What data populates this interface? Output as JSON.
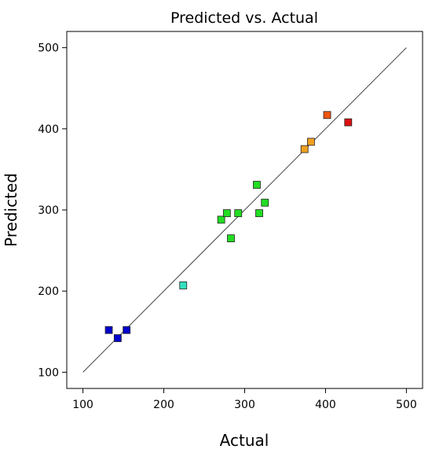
{
  "chart_data": {
    "type": "scatter",
    "title": "Predicted vs. Actual",
    "xlabel": "Actual",
    "ylabel": "Predicted",
    "xlim": [
      80,
      520
    ],
    "ylim": [
      80,
      520
    ],
    "xticks": [
      100,
      200,
      300,
      400,
      500
    ],
    "yticks": [
      100,
      200,
      300,
      400,
      500
    ],
    "reference_line": {
      "from": [
        100,
        100
      ],
      "to": [
        500,
        500
      ],
      "color": "#444444"
    },
    "grid": false,
    "legend": "none",
    "points": [
      {
        "x": 132,
        "y": 152,
        "color": "#0000cc"
      },
      {
        "x": 143,
        "y": 142,
        "color": "#0000cc"
      },
      {
        "x": 154,
        "y": 152,
        "color": "#0000cc"
      },
      {
        "x": 224,
        "y": 207,
        "color": "#33e0c0"
      },
      {
        "x": 271,
        "y": 288,
        "color": "#22dd22"
      },
      {
        "x": 278,
        "y": 296,
        "color": "#22dd22"
      },
      {
        "x": 283,
        "y": 265,
        "color": "#22dd22"
      },
      {
        "x": 292,
        "y": 296,
        "color": "#22dd22"
      },
      {
        "x": 315,
        "y": 331,
        "color": "#22dd22"
      },
      {
        "x": 318,
        "y": 296,
        "color": "#22dd22"
      },
      {
        "x": 325,
        "y": 309,
        "color": "#22dd22"
      },
      {
        "x": 374,
        "y": 375,
        "color": "#f0a020"
      },
      {
        "x": 382,
        "y": 384,
        "color": "#f0a020"
      },
      {
        "x": 402,
        "y": 417,
        "color": "#ee5511"
      },
      {
        "x": 428,
        "y": 408,
        "color": "#dd1111"
      }
    ]
  }
}
